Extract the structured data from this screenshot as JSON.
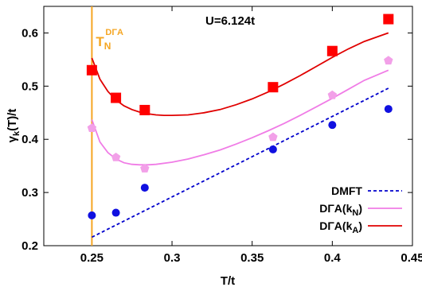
{
  "chart_data": {
    "type": "scatter",
    "title": "",
    "xlabel": "T/t",
    "xlim": [
      0.22,
      0.45
    ],
    "ylim": [
      0.2,
      0.65
    ],
    "xticks": [
      0.25,
      0.3,
      0.35,
      0.4,
      0.45
    ],
    "xtick_labels": [
      "0.25",
      "0.3",
      "0.35",
      "0.4",
      "0.45"
    ],
    "yticks": [
      0.2,
      0.3,
      0.4,
      0.5,
      0.6
    ],
    "ytick_labels": [
      "0.2",
      "0.3",
      "0.4",
      "0.5",
      "0.6"
    ],
    "grid": false,
    "legend_position": "bottom-right",
    "annotations": {
      "u_label": "U=6.124t",
      "tn_label_main": "T",
      "tn_label_sub": "N",
      "tn_label_sup": "DΓA",
      "tn_x": 0.25,
      "tn_color": "#f5a623"
    },
    "ylabel_parts": {
      "base": "γ",
      "sub": "k",
      "rest": "(T)/t"
    },
    "points": [
      {
        "name": "DΓA(kA) data",
        "color": "#ff0000",
        "marker": "square",
        "x": [
          0.25,
          0.265,
          0.283,
          0.363,
          0.4,
          0.435
        ],
        "y": [
          0.53,
          0.478,
          0.455,
          0.498,
          0.566,
          0.626
        ]
      },
      {
        "name": "DΓA(kN) data",
        "color": "#f2a0e8",
        "marker": "pentagon",
        "x": [
          0.25,
          0.265,
          0.283,
          0.363,
          0.4,
          0.435
        ],
        "y": [
          0.421,
          0.366,
          0.345,
          0.404,
          0.483,
          0.548
        ]
      },
      {
        "name": "DMFT data",
        "color": "#1010e0",
        "marker": "circle",
        "x": [
          0.25,
          0.265,
          0.283,
          0.363,
          0.4,
          0.435
        ],
        "y": [
          0.257,
          0.262,
          0.309,
          0.381,
          0.427,
          0.457
        ]
      }
    ],
    "series": [
      {
        "name": "DMFT",
        "label_base": "DMFT",
        "label_sub": "",
        "label_end": "",
        "color": "#0000cc",
        "dash": "4,3",
        "type": "line",
        "x": [
          0.25,
          0.435
        ],
        "y": [
          0.216,
          0.496
        ]
      },
      {
        "name": "DΓA(kN)",
        "label_base": "DΓA(k",
        "label_sub": "N",
        "label_end": ")",
        "color": "#f07ce6",
        "dash": "",
        "type": "line",
        "x": [
          0.25,
          0.255,
          0.26,
          0.265,
          0.27,
          0.275,
          0.28,
          0.285,
          0.29,
          0.3,
          0.31,
          0.32,
          0.33,
          0.34,
          0.35,
          0.36,
          0.37,
          0.38,
          0.39,
          0.4,
          0.41,
          0.42,
          0.435
        ],
        "y": [
          0.437,
          0.395,
          0.375,
          0.363,
          0.356,
          0.353,
          0.352,
          0.352,
          0.353,
          0.357,
          0.363,
          0.371,
          0.38,
          0.391,
          0.403,
          0.416,
          0.43,
          0.445,
          0.461,
          0.477,
          0.494,
          0.511,
          0.53
        ]
      },
      {
        "name": "DΓA(kA)",
        "label_base": "DΓA(k",
        "label_sub": "A",
        "label_end": ")",
        "color": "#e00000",
        "dash": "",
        "type": "line",
        "x": [
          0.25,
          0.255,
          0.26,
          0.265,
          0.27,
          0.275,
          0.28,
          0.285,
          0.29,
          0.295,
          0.3,
          0.31,
          0.32,
          0.33,
          0.34,
          0.35,
          0.36,
          0.37,
          0.38,
          0.39,
          0.4,
          0.41,
          0.42,
          0.435
        ],
        "y": [
          0.553,
          0.513,
          0.49,
          0.474,
          0.463,
          0.456,
          0.451,
          0.448,
          0.446,
          0.445,
          0.445,
          0.446,
          0.45,
          0.456,
          0.465,
          0.476,
          0.489,
          0.504,
          0.52,
          0.537,
          0.554,
          0.57,
          0.584,
          0.6
        ]
      }
    ]
  }
}
